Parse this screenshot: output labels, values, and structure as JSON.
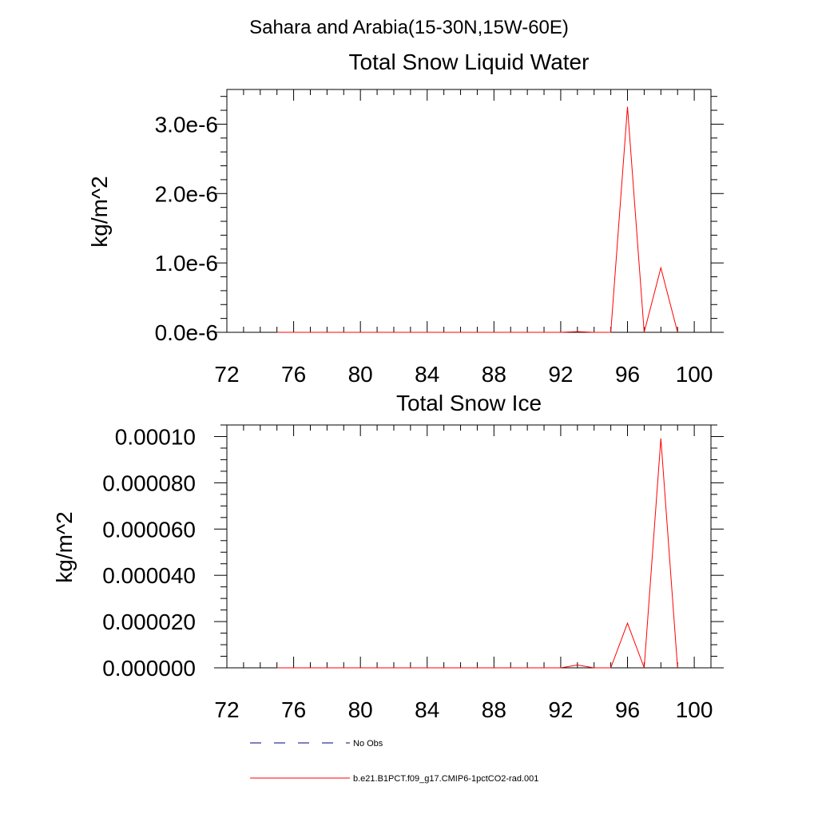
{
  "figure": {
    "title": "Sahara and Arabia(15-30N,15W-60E)"
  },
  "legend": {
    "entries": [
      {
        "label": "No Obs",
        "color": "#000080",
        "dash": "dashed"
      },
      {
        "label": "b.e21.B1PCT.f09_g17.CMIP6-1pctCO2-rad.001",
        "color": "#ff0000",
        "dash": "solid"
      }
    ]
  },
  "chart_data": [
    {
      "type": "line",
      "title": "Total Snow Liquid Water",
      "xlabel": "",
      "ylabel": "kg/m^2",
      "xlim": [
        72,
        101
      ],
      "ylim": [
        0,
        3.5e-06
      ],
      "xticks": [
        72,
        76,
        80,
        84,
        88,
        92,
        96,
        100
      ],
      "xtick_labels": [
        "72",
        "76",
        "80",
        "84",
        "88",
        "92",
        "96",
        "100"
      ],
      "yticks": [
        0,
        1e-06,
        2e-06,
        3e-06
      ],
      "ytick_labels": [
        "0.0e-6",
        "1.0e-6",
        "2.0e-6",
        "3.0e-6"
      ],
      "grid": false,
      "series": [
        {
          "name": "b.e21.B1PCT.f09_g17.CMIP6-1pctCO2-rad.001",
          "color": "#ff0000",
          "x": [
            75,
            76,
            77,
            78,
            79,
            80,
            81,
            82,
            83,
            84,
            85,
            86,
            87,
            88,
            89,
            90,
            91,
            92,
            93,
            94,
            95,
            96,
            97,
            98,
            99
          ],
          "y": [
            0,
            0,
            0,
            0,
            0,
            0,
            0,
            0,
            0,
            0,
            0,
            0,
            0,
            0,
            0,
            0,
            0,
            0,
            1e-08,
            0,
            0,
            3.25e-06,
            0,
            9.3e-07,
            0
          ]
        }
      ]
    },
    {
      "type": "line",
      "title": "Total Snow Ice",
      "xlabel": "",
      "ylabel": "kg/m^2",
      "xlim": [
        72,
        101
      ],
      "ylim": [
        0,
        0.000105
      ],
      "xticks": [
        72,
        76,
        80,
        84,
        88,
        92,
        96,
        100
      ],
      "xtick_labels": [
        "72",
        "76",
        "80",
        "84",
        "88",
        "92",
        "96",
        "100"
      ],
      "yticks": [
        0,
        2e-05,
        4e-05,
        6e-05,
        8e-05,
        0.0001
      ],
      "ytick_labels": [
        "0.000000",
        "0.000020",
        "0.000040",
        "0.000060",
        "0.000080",
        "0.00010"
      ],
      "grid": false,
      "series": [
        {
          "name": "b.e21.B1PCT.f09_g17.CMIP6-1pctCO2-rad.001",
          "color": "#ff0000",
          "x": [
            75,
            76,
            77,
            78,
            79,
            80,
            81,
            82,
            83,
            84,
            85,
            86,
            87,
            88,
            89,
            90,
            91,
            92,
            93,
            94,
            95,
            96,
            97,
            98,
            99
          ],
          "y": [
            0,
            0,
            0,
            0,
            0,
            0,
            0,
            0,
            0,
            0,
            0,
            0,
            0,
            0,
            0,
            0,
            0,
            0,
            1.2e-06,
            0,
            0,
            1.93e-05,
            0,
            9.92e-05,
            0
          ]
        }
      ]
    }
  ]
}
